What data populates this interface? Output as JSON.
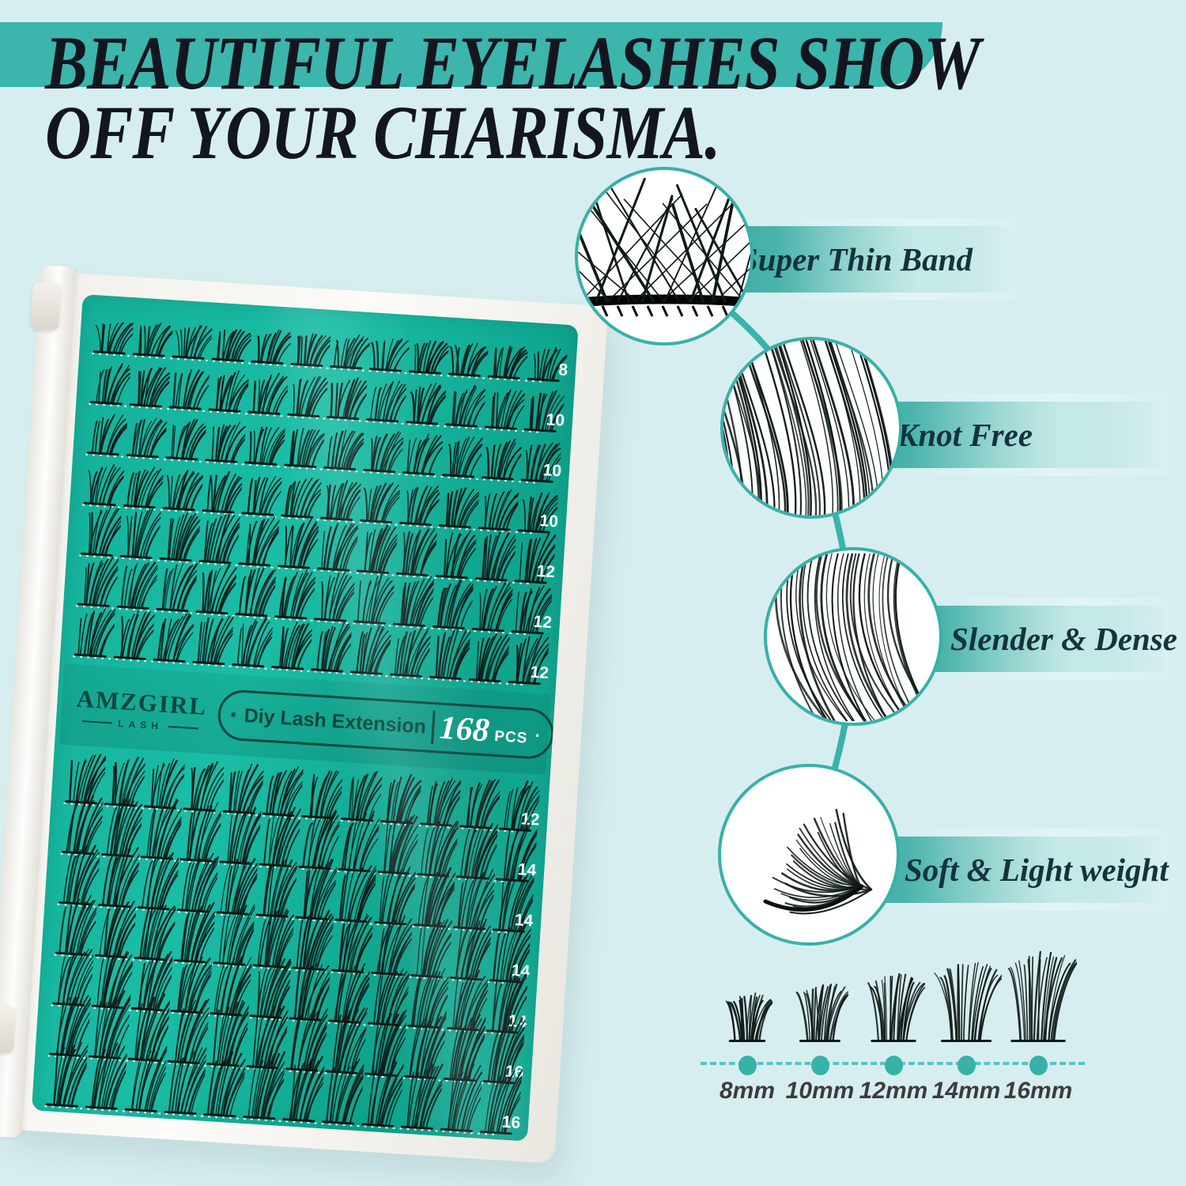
{
  "header": {
    "line1": "BEAUTIFUL EYELASHES SHOW",
    "line2": "OFF YOUR CHARISMA."
  },
  "features": [
    {
      "label": "Super Thin Band"
    },
    {
      "label": "Knot Free"
    },
    {
      "label": "Slender & Dense"
    },
    {
      "label": "Soft & Light weight"
    }
  ],
  "tray": {
    "brand": "AMZGIRL",
    "brand_sub": "LASH",
    "pill": {
      "prefix_dot": "·",
      "product": "Diy Lash Extension",
      "count": "168",
      "unit": "PCS",
      "suffix_dot": "·"
    },
    "row_labels_top": [
      "8",
      "10",
      "10",
      "10",
      "12",
      "12",
      "12"
    ],
    "row_labels_bottom": [
      "12",
      "14",
      "14",
      "14",
      "14",
      "16",
      "16"
    ]
  },
  "sizes": {
    "items": [
      {
        "label": "8mm"
      },
      {
        "label": "10mm"
      },
      {
        "label": "12mm"
      },
      {
        "label": "14mm"
      },
      {
        "label": "16mm"
      }
    ]
  },
  "colors": {
    "background": "#d7eef0",
    "accent": "#3cb5ac",
    "tray_green": "#14b09a",
    "deep_green": "#0b463b",
    "title_text": "#13161f",
    "feature_text": "#14333c",
    "size_label_text": "#3c3c3c",
    "dot": "#36b2a9",
    "lash_black": "#101a17"
  }
}
